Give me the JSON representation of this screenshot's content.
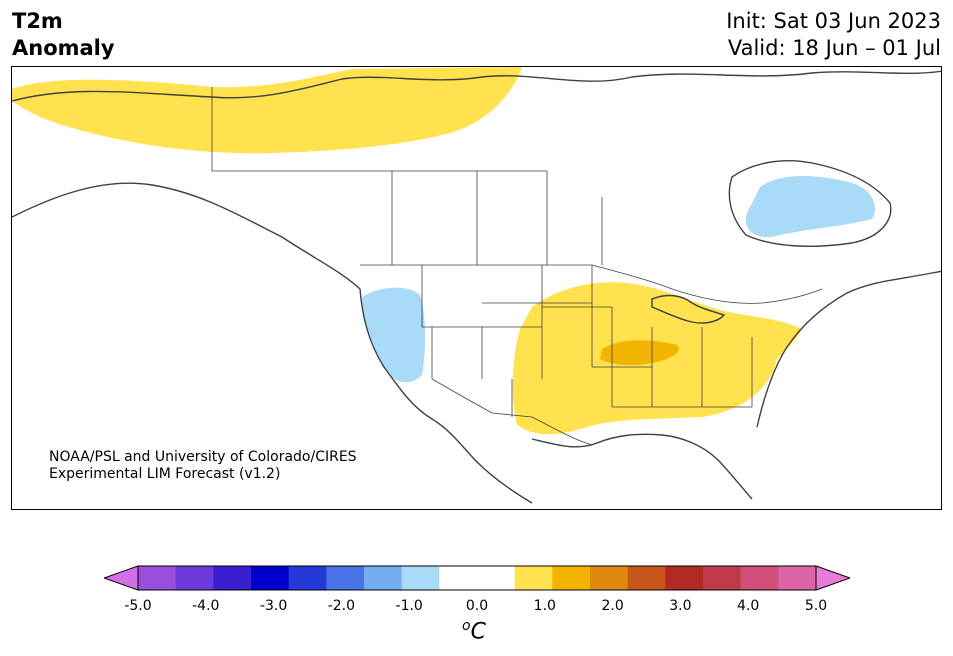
{
  "title": {
    "line1": "T2m",
    "line2": "Anomaly"
  },
  "dates": {
    "init": "Init: Sat 03 Jun 2023",
    "valid": "Valid: 18 Jun – 01 Jul"
  },
  "credit": {
    "line1": "NOAA/PSL and University of Colorado/CIRES",
    "line2": "Experimental LIM Forecast (v1.2)"
  },
  "colorbar": {
    "colors": [
      "#d26ee6",
      "#9a4fdc",
      "#6b3adb",
      "#3a1fd0",
      "#0000cd",
      "#2439d8",
      "#4a74e5",
      "#74aef0",
      "#a9daf8",
      "#ffffff",
      "#ffffff",
      "#ffe24d",
      "#f2b400",
      "#de8a10",
      "#c8561a",
      "#b12a25",
      "#c03a4a",
      "#d04f78",
      "#dd64a6",
      "#e87ad8"
    ],
    "ticks": [
      "-5.0",
      "-4.0",
      "-3.0",
      "-2.0",
      "-1.0",
      "0.0",
      "1.0",
      "2.0",
      "3.0",
      "4.0",
      "5.0"
    ],
    "unit_base": "C",
    "unit_sup": "o"
  },
  "anomaly_colors": {
    "warm": "#ffe24d",
    "warm_strong": "#f2b400",
    "cool": "#a9daf8"
  }
}
